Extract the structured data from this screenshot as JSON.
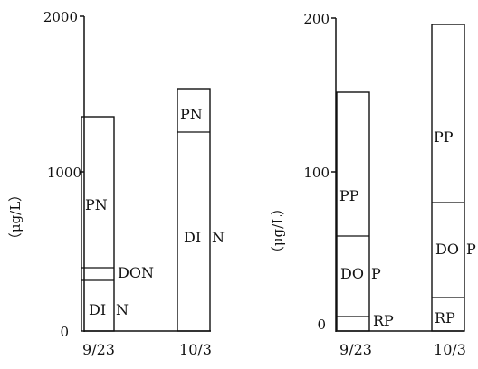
{
  "chart_data": [
    {
      "type": "bar",
      "stacked": true,
      "ylabel": "（μg/L）",
      "ylim": [
        0,
        2000
      ],
      "yticks": [
        "2000",
        "1000",
        "0"
      ],
      "categories": [
        "9/23",
        "10/3"
      ],
      "series": [
        {
          "name": "DIN",
          "values": [
            310,
            1255
          ]
        },
        {
          "name": "DON",
          "values": [
            70,
            0
          ]
        },
        {
          "name": "PN",
          "values": [
            975,
            285
          ]
        }
      ],
      "segment_labels": [
        [
          "DI",
          "N"
        ],
        [
          "DON"
        ],
        [
          "PN"
        ],
        [
          "DI",
          "N"
        ],
        [
          "PN"
        ]
      ],
      "grid": false,
      "legend": "none"
    },
    {
      "type": "bar",
      "stacked": true,
      "ylabel": "（μg/L）",
      "ylim": [
        0,
        200
      ],
      "yticks": [
        "200",
        "100",
        "0"
      ],
      "categories": [
        "9/23",
        "10/3"
      ],
      "series": [
        {
          "name": "RP",
          "values": [
            7,
            20
          ]
        },
        {
          "name": "DOP",
          "values": [
            52,
            60
          ]
        },
        {
          "name": "PP",
          "values": [
            92,
            115
          ]
        }
      ],
      "segment_labels": [
        [
          "RP"
        ],
        [
          "DO",
          "P"
        ],
        [
          "PP"
        ],
        [
          "RP"
        ],
        [
          "DO",
          "P"
        ],
        [
          "PP"
        ]
      ],
      "grid": false,
      "legend": "none"
    }
  ]
}
